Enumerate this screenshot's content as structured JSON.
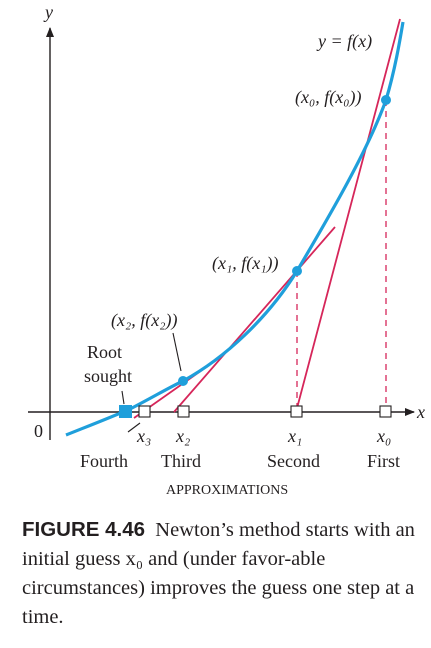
{
  "axes": {
    "y_label": "y",
    "x_label": "x",
    "origin_label": "0"
  },
  "curve_label": "y = f(x)",
  "points": {
    "p0": "(x₀, f(x₀))",
    "p1": "(x₁, f(x₁))",
    "p2": "(x₂, f(x₂))"
  },
  "root_label": [
    "Root",
    "sought"
  ],
  "x_ticks": {
    "x3": "x₃",
    "x2": "x₂",
    "x1": "x₁",
    "x0": "x₀"
  },
  "approx_labels": {
    "fourth": "Fourth",
    "third": "Third",
    "second": "Second",
    "first": "First"
  },
  "approx_heading": "APPROXIMATIONS",
  "caption": {
    "label": "FIGURE 4.46",
    "text": "Newton’s method starts with an initial guess x₀ and (under favor-able circumstances) improves the guess one step at a time."
  },
  "colors": {
    "curve": "#1f9fdb",
    "tangent": "#d6265a",
    "point": "#1f9fdb",
    "text": "#231f20"
  }
}
